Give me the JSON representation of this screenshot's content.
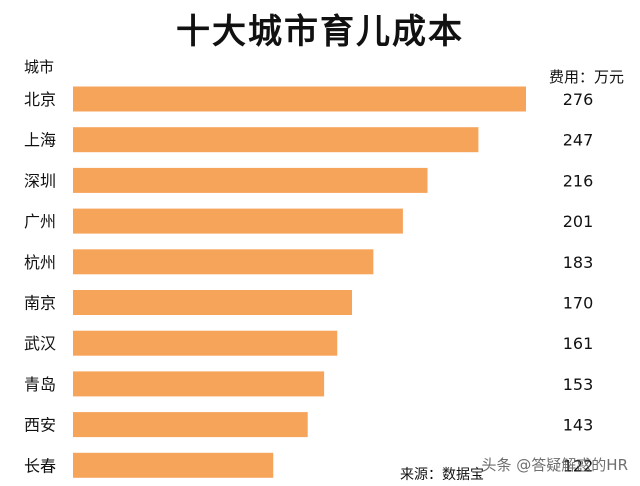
{
  "chart_data": {
    "type": "bar",
    "orientation": "horizontal",
    "title": "十大城市育儿成本",
    "category_header": "城市",
    "unit_label": "费用：万元",
    "categories": [
      "北京",
      "上海",
      "深圳",
      "广州",
      "杭州",
      "南京",
      "武汉",
      "青岛",
      "西安",
      "长春"
    ],
    "values": [
      276,
      247,
      216,
      201,
      183,
      170,
      161,
      153,
      143,
      122
    ],
    "bar_color": "#F7A45B",
    "source": "来源：数据宝",
    "grid": false
  },
  "watermark": "头条 @答疑解惑的HR"
}
